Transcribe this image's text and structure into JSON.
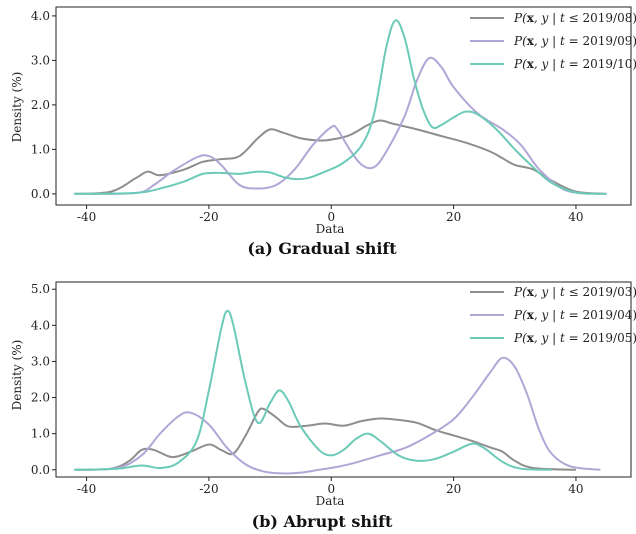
{
  "chart_data": [
    {
      "type": "line",
      "caption": "(a) Gradual shift",
      "xlabel": "Data",
      "ylabel": "Density (%)",
      "xlim": [
        -45,
        49
      ],
      "ylim": [
        -0.25,
        4.2
      ],
      "xticks": [
        -40,
        -20,
        0,
        20,
        40
      ],
      "yticks": [
        0.0,
        1.0,
        2.0,
        3.0,
        4.0
      ],
      "xtick_labels": [
        "-40",
        "-20",
        "0",
        "20",
        "40"
      ],
      "ytick_labels": [
        "0.0",
        "1.0",
        "2.0",
        "3.0",
        "4.0"
      ],
      "legend_placement": "top-right",
      "series": [
        {
          "name": "P(x, y | t ≤ 2019/08)",
          "name_parts": {
            "pre": "P(",
            "bold": "x",
            "mid": ", y | t ",
            "op": "≤",
            "post": " 2019/08)"
          },
          "color": "#8e8e8e",
          "points": [
            [
              -42,
              0
            ],
            [
              -36,
              0.05
            ],
            [
              -32,
              0.35
            ],
            [
              -30,
              0.5
            ],
            [
              -28,
              0.42
            ],
            [
              -24,
              0.55
            ],
            [
              -21,
              0.72
            ],
            [
              -18,
              0.78
            ],
            [
              -15,
              0.85
            ],
            [
              -12,
              1.25
            ],
            [
              -10,
              1.45
            ],
            [
              -8,
              1.38
            ],
            [
              -5,
              1.25
            ],
            [
              -2,
              1.2
            ],
            [
              0,
              1.22
            ],
            [
              3,
              1.32
            ],
            [
              6,
              1.55
            ],
            [
              8,
              1.65
            ],
            [
              10,
              1.58
            ],
            [
              14,
              1.45
            ],
            [
              18,
              1.3
            ],
            [
              22,
              1.15
            ],
            [
              26,
              0.95
            ],
            [
              28,
              0.8
            ],
            [
              30,
              0.65
            ],
            [
              33,
              0.55
            ],
            [
              36,
              0.3
            ],
            [
              40,
              0.05
            ],
            [
              45,
              0
            ]
          ]
        },
        {
          "name": "P(x, y | t = 2019/09)",
          "name_parts": {
            "pre": "P(",
            "bold": "x",
            "mid": ", y | t ",
            "op": "=",
            "post": " 2019/09)"
          },
          "color": "#b1a6d6",
          "points": [
            [
              -42,
              0
            ],
            [
              -32,
              0.02
            ],
            [
              -29,
              0.2
            ],
            [
              -26,
              0.5
            ],
            [
              -22,
              0.82
            ],
            [
              -20,
              0.85
            ],
            [
              -18,
              0.65
            ],
            [
              -15,
              0.2
            ],
            [
              -12,
              0.12
            ],
            [
              -9,
              0.2
            ],
            [
              -6,
              0.55
            ],
            [
              -3,
              1.1
            ],
            [
              0,
              1.5
            ],
            [
              1,
              1.45
            ],
            [
              3,
              1.0
            ],
            [
              5,
              0.65
            ],
            [
              7,
              0.6
            ],
            [
              9,
              0.95
            ],
            [
              12,
              1.75
            ],
            [
              14,
              2.55
            ],
            [
              16,
              3.05
            ],
            [
              18,
              2.85
            ],
            [
              20,
              2.4
            ],
            [
              24,
              1.8
            ],
            [
              28,
              1.45
            ],
            [
              31,
              1.1
            ],
            [
              34,
              0.55
            ],
            [
              38,
              0.1
            ],
            [
              42,
              0
            ]
          ]
        },
        {
          "name": "P(x, y | t = 2019/10)",
          "name_parts": {
            "pre": "P(",
            "bold": "x",
            "mid": ", y | t ",
            "op": "=",
            "post": " 2019/10)"
          },
          "color": "#6ccab8",
          "points": [
            [
              -42,
              0
            ],
            [
              -32,
              0.02
            ],
            [
              -28,
              0.12
            ],
            [
              -24,
              0.28
            ],
            [
              -21,
              0.45
            ],
            [
              -18,
              0.47
            ],
            [
              -15,
              0.45
            ],
            [
              -12,
              0.5
            ],
            [
              -10,
              0.48
            ],
            [
              -7,
              0.35
            ],
            [
              -4,
              0.35
            ],
            [
              -1,
              0.5
            ],
            [
              2,
              0.7
            ],
            [
              5,
              1.1
            ],
            [
              7,
              1.8
            ],
            [
              9,
              3.3
            ],
            [
              10.5,
              3.9
            ],
            [
              12,
              3.5
            ],
            [
              13.5,
              2.6
            ],
            [
              15,
              1.9
            ],
            [
              16.5,
              1.5
            ],
            [
              18,
              1.55
            ],
            [
              20,
              1.72
            ],
            [
              22,
              1.85
            ],
            [
              24,
              1.78
            ],
            [
              27,
              1.45
            ],
            [
              30,
              1.0
            ],
            [
              33,
              0.6
            ],
            [
              36,
              0.25
            ],
            [
              40,
              0.03
            ],
            [
              45,
              0
            ]
          ]
        }
      ]
    },
    {
      "type": "line",
      "caption": "(b) Abrupt shift",
      "xlabel": "Data",
      "ylabel": "Density (%)",
      "xlim": [
        -45,
        49
      ],
      "ylim": [
        -0.2,
        5.2
      ],
      "xticks": [
        -40,
        -20,
        0,
        20,
        40
      ],
      "yticks": [
        0.0,
        1.0,
        2.0,
        3.0,
        4.0,
        5.0
      ],
      "xtick_labels": [
        "-40",
        "-20",
        "0",
        "20",
        "40"
      ],
      "ytick_labels": [
        "0.0",
        "1.0",
        "2.0",
        "3.0",
        "4.0",
        "5.0"
      ],
      "legend_placement": "top-right",
      "series": [
        {
          "name": "P(x, y | t ≤ 2019/03)",
          "name_parts": {
            "pre": "P(",
            "bold": "x",
            "mid": ", y | t ",
            "op": "≤",
            "post": " 2019/03)"
          },
          "color": "#8e8e8e",
          "points": [
            [
              -42,
              0
            ],
            [
              -36,
              0.03
            ],
            [
              -33,
              0.25
            ],
            [
              -31,
              0.55
            ],
            [
              -29,
              0.55
            ],
            [
              -26,
              0.35
            ],
            [
              -23,
              0.5
            ],
            [
              -20,
              0.7
            ],
            [
              -18,
              0.55
            ],
            [
              -16,
              0.45
            ],
            [
              -14,
              0.95
            ],
            [
              -12,
              1.6
            ],
            [
              -11,
              1.68
            ],
            [
              -9,
              1.45
            ],
            [
              -7,
              1.2
            ],
            [
              -4,
              1.22
            ],
            [
              -1,
              1.28
            ],
            [
              2,
              1.22
            ],
            [
              5,
              1.35
            ],
            [
              8,
              1.42
            ],
            [
              11,
              1.38
            ],
            [
              14,
              1.3
            ],
            [
              17,
              1.1
            ],
            [
              20,
              0.95
            ],
            [
              23,
              0.8
            ],
            [
              26,
              0.62
            ],
            [
              28,
              0.5
            ],
            [
              30,
              0.25
            ],
            [
              33,
              0.05
            ],
            [
              40,
              0
            ]
          ]
        },
        {
          "name": "P(x, y | t = 2019/04)",
          "name_parts": {
            "pre": "P(",
            "bold": "x",
            "mid": ", y | t ",
            "op": "=",
            "post": " 2019/04)"
          },
          "color": "#b1a6d6",
          "points": [
            [
              -42,
              0
            ],
            [
              -35,
              0.05
            ],
            [
              -31,
              0.4
            ],
            [
              -28,
              1.0
            ],
            [
              -25,
              1.48
            ],
            [
              -23,
              1.58
            ],
            [
              -20,
              1.25
            ],
            [
              -17,
              0.6
            ],
            [
              -14,
              0.15
            ],
            [
              -11,
              -0.05
            ],
            [
              -8,
              -0.1
            ],
            [
              -5,
              -0.08
            ],
            [
              -2,
              0
            ],
            [
              1,
              0.08
            ],
            [
              4,
              0.2
            ],
            [
              8,
              0.4
            ],
            [
              12,
              0.6
            ],
            [
              16,
              0.95
            ],
            [
              20,
              1.4
            ],
            [
              23,
              2.0
            ],
            [
              26,
              2.7
            ],
            [
              28,
              3.1
            ],
            [
              30,
              2.85
            ],
            [
              32,
              2.1
            ],
            [
              34,
              1.1
            ],
            [
              36,
              0.45
            ],
            [
              39,
              0.1
            ],
            [
              44,
              0
            ]
          ]
        },
        {
          "name": "P(x, y | t = 2019/05)",
          "name_parts": {
            "pre": "P(",
            "bold": "x",
            "mid": ", y | t ",
            "op": "=",
            "post": " 2019/05)"
          },
          "color": "#6ccab8",
          "points": [
            [
              -42,
              0
            ],
            [
              -35,
              0.03
            ],
            [
              -31,
              0.12
            ],
            [
              -28,
              0.05
            ],
            [
              -25,
              0.2
            ],
            [
              -22,
              0.8
            ],
            [
              -20,
              2.2
            ],
            [
              -18,
              3.9
            ],
            [
              -17,
              4.4
            ],
            [
              -16,
              4.0
            ],
            [
              -14,
              2.4
            ],
            [
              -12,
              1.3
            ],
            [
              -10,
              1.85
            ],
            [
              -8.5,
              2.2
            ],
            [
              -7,
              1.9
            ],
            [
              -5,
              1.2
            ],
            [
              -2,
              0.55
            ],
            [
              0,
              0.4
            ],
            [
              2,
              0.55
            ],
            [
              4,
              0.85
            ],
            [
              6,
              1.0
            ],
            [
              8,
              0.8
            ],
            [
              11,
              0.4
            ],
            [
              14,
              0.25
            ],
            [
              17,
              0.3
            ],
            [
              20,
              0.5
            ],
            [
              23,
              0.72
            ],
            [
              25,
              0.6
            ],
            [
              28,
              0.22
            ],
            [
              31,
              0.03
            ],
            [
              36,
              0
            ]
          ]
        }
      ]
    }
  ]
}
